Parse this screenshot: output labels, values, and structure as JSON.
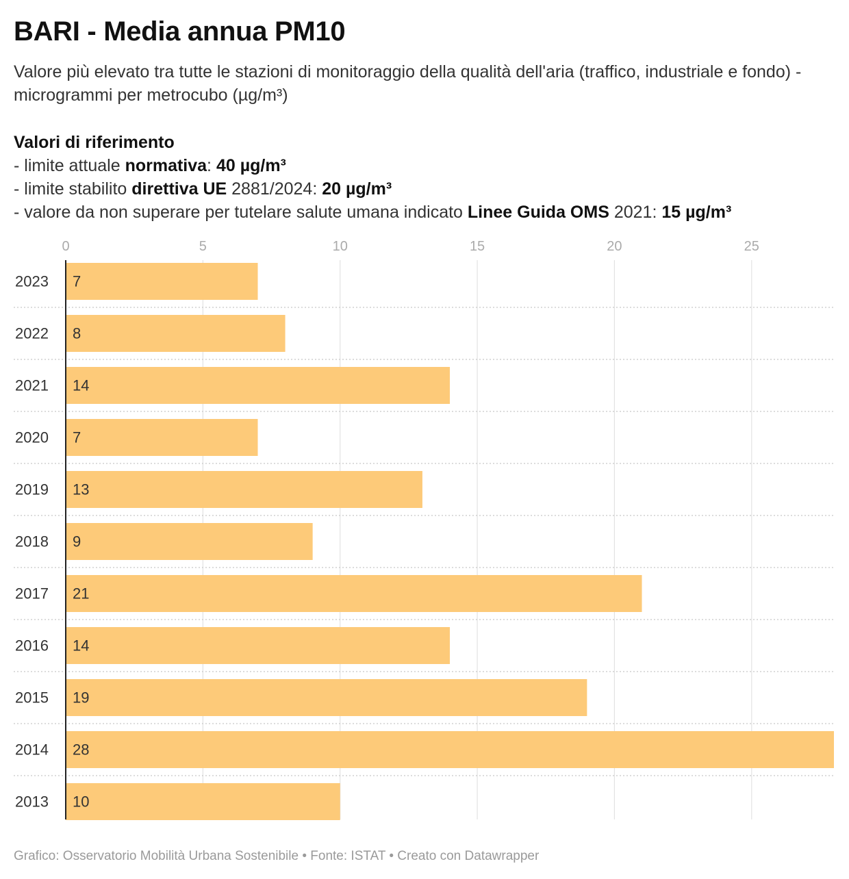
{
  "title": "BARI - Media annua PM10",
  "subtitle": "Valore più elevato tra tutte le stazioni di monitoraggio della qualità dell'aria (traffico, industriale e fondo) - microgrammi per metrocubo (µg/m³)",
  "reference": {
    "heading": "Valori di riferimento",
    "line1": {
      "prefix": "- limite attuale ",
      "bold": "normativa",
      "middle": ": ",
      "value": "40 µg/m³"
    },
    "line2": {
      "prefix": "- limite stabilito ",
      "bold": "direttiva UE",
      "middle": " 2881/2024: ",
      "value": "20 µg/m³"
    },
    "line3": {
      "prefix": "- valore da non superare per tutelare salute umana indicato ",
      "bold": "Linee Guida OMS",
      "middle": " 2021: ",
      "value": "15 µg/m³"
    }
  },
  "footer": "Grafico: Osservatorio Mobilità Urbana Sostenibile • Fonte: ISTAT • Creato con Datawrapper",
  "chart_data": {
    "type": "bar",
    "orientation": "horizontal",
    "categories": [
      "2023",
      "2022",
      "2021",
      "2020",
      "2019",
      "2018",
      "2017",
      "2016",
      "2015",
      "2014",
      "2013"
    ],
    "values": [
      7,
      8,
      14,
      7,
      13,
      9,
      21,
      14,
      19,
      28,
      10
    ],
    "x_ticks": [
      0,
      5,
      10,
      15,
      20,
      25
    ],
    "xlim": [
      0,
      28
    ],
    "axis_position": "top",
    "grid": true,
    "data_labels": true,
    "bar_color": "#fdca79",
    "grid_color": "#e2e2e2",
    "separator_color": "#c8c8c8",
    "axis_color": "#222222",
    "tick_label_color": "#aaaaaa",
    "label_color": "#333333"
  }
}
